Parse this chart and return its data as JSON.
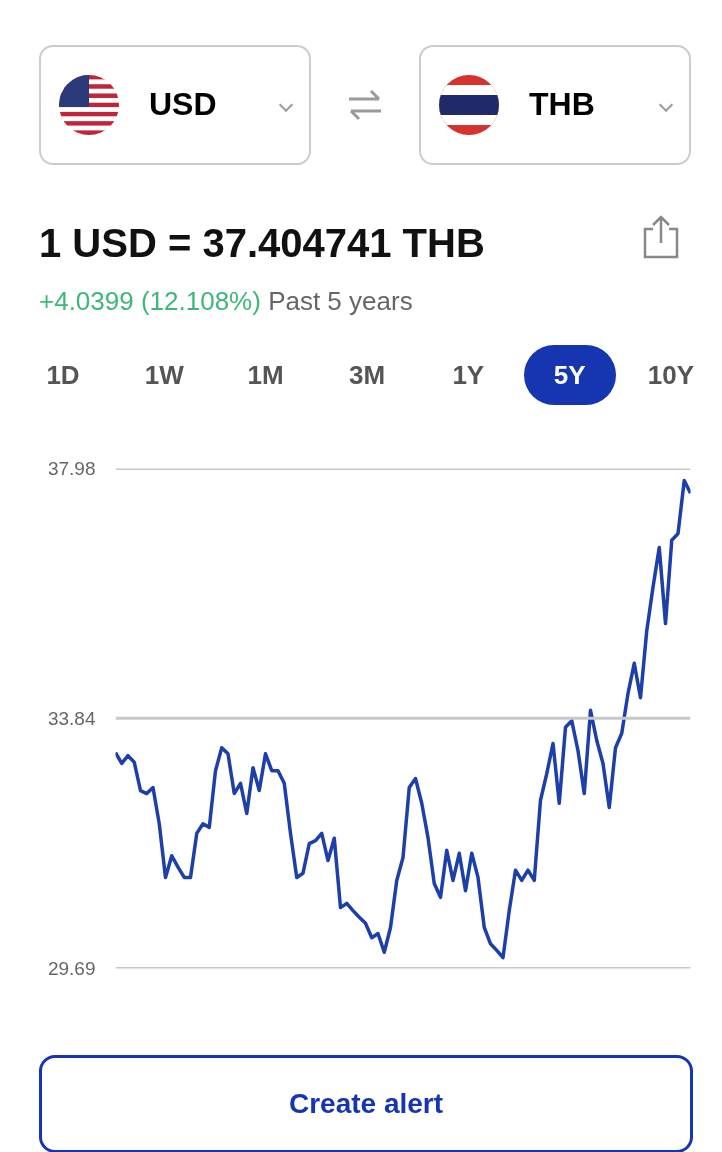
{
  "chart_data": {
    "type": "line",
    "title": "1 USD = 37.404741 THB",
    "annotations": [
      "USD",
      "THB",
      "+4.0399 (12.108%)",
      "Past 5 years",
      "1D",
      "1W",
      "1M",
      "3M",
      "1Y",
      "5Y",
      "10Y",
      "Create alert"
    ],
    "categories": [
      null,
      null,
      null,
      null,
      null,
      null,
      null,
      null,
      null,
      null,
      null,
      null,
      null,
      null,
      null,
      null,
      null,
      null,
      null,
      null,
      null,
      null,
      null,
      null,
      null,
      null,
      null,
      null,
      null,
      null,
      null,
      null,
      null,
      null,
      null,
      null,
      null,
      null,
      null,
      null,
      null,
      null,
      null,
      null,
      null,
      null,
      null,
      null,
      null,
      null,
      null,
      null,
      null,
      null,
      null,
      null,
      null,
      null,
      null,
      null,
      null,
      null,
      null,
      null,
      null,
      null,
      null,
      null,
      null,
      null,
      null,
      null,
      null,
      null,
      null,
      null,
      null,
      null,
      null,
      null,
      null,
      null,
      null,
      null,
      null,
      null,
      null,
      null,
      null,
      null,
      null,
      null,
      null
    ],
    "series": [
      {
        "color": "#1c3faa",
        "values": [
          33.27,
          33.09,
          33.22,
          33.11,
          32.64,
          32.59,
          32.69,
          32.09,
          31.2,
          31.56,
          31.37,
          31.2,
          31.2,
          31.93,
          32.09,
          32.03,
          32.97,
          33.35,
          33.25,
          32.59,
          32.76,
          32.26,
          33.02,
          32.64,
          33.25,
          32.97,
          32.97,
          32.76,
          31.93,
          31.2,
          31.27,
          31.76,
          31.81,
          31.93,
          31.48,
          31.85,
          30.7,
          30.77,
          30.65,
          30.54,
          30.44,
          30.2,
          30.27,
          29.96,
          30.37,
          31.15,
          31.53,
          32.69,
          32.84,
          32.43,
          31.86,
          31.1,
          30.87,
          31.65,
          31.15,
          31.6,
          30.98,
          31.6,
          31.2,
          30.37,
          30.1,
          29.99,
          29.87,
          30.65,
          31.32,
          31.15,
          31.32,
          31.15,
          32.48,
          32.92,
          33.42,
          32.43,
          33.69,
          33.8,
          33.3,
          32.59,
          33.97,
          33.47,
          33.09,
          32.36,
          33.35,
          33.59,
          34.25,
          34.75,
          34.18,
          35.29,
          36.01,
          36.67,
          35.41,
          36.79,
          36.9,
          37.78,
          37.57
        ]
      }
    ],
    "ylim": [
      29.69,
      37.98
    ],
    "yticks": [
      29.69,
      33.84,
      37.98
    ],
    "grid": "y",
    "tick_labels": "y",
    "line_style": "solid",
    "marker": "none"
  }
}
